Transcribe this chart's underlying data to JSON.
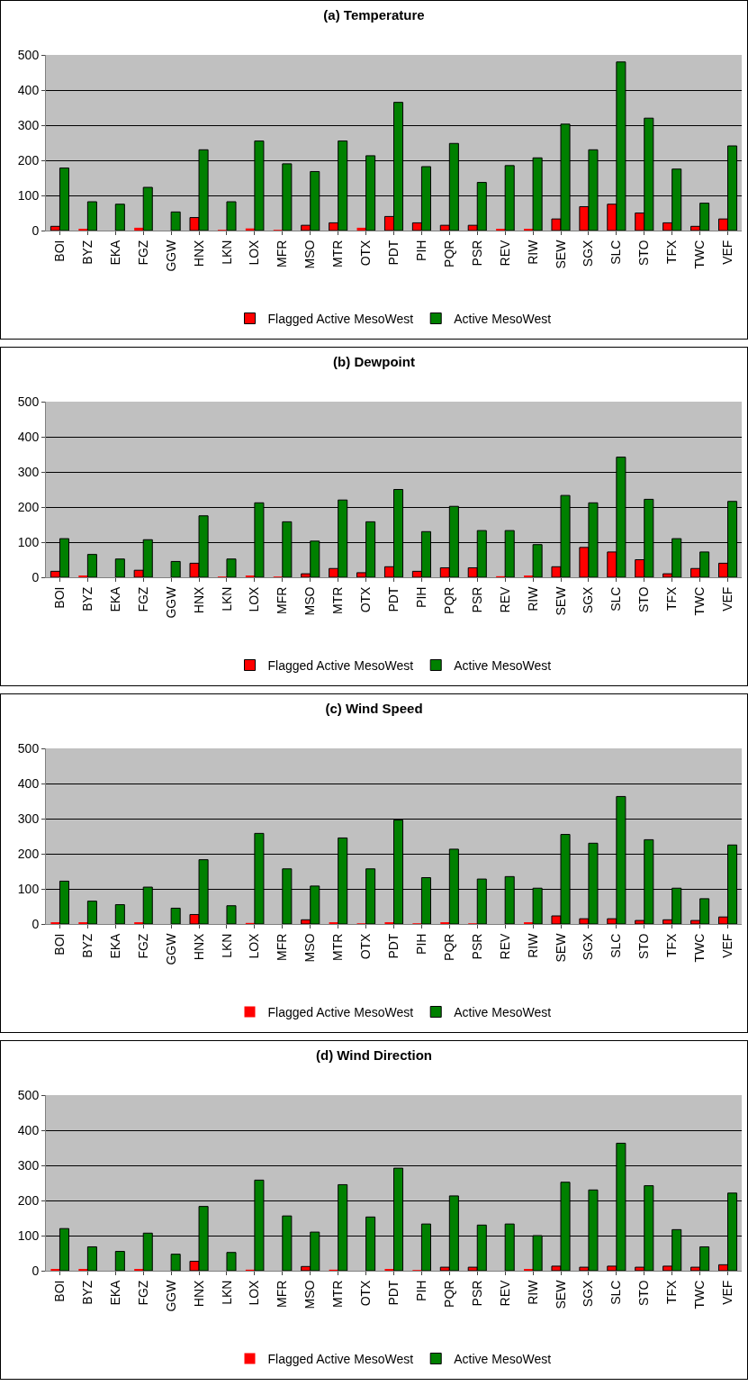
{
  "chart_data": [
    {
      "type": "bar",
      "title": "(a) Temperature",
      "categories": [
        "BOI",
        "BYZ",
        "EKA",
        "FGZ",
        "GGW",
        "HNX",
        "LKN",
        "LOX",
        "MFR",
        "MSO",
        "MTR",
        "OTX",
        "PDT",
        "PIH",
        "PQR",
        "PSR",
        "REV",
        "RIW",
        "SEW",
        "SGX",
        "SLC",
        "STO",
        "TFX",
        "TWC",
        "VEF"
      ],
      "ylim": [
        0,
        500
      ],
      "yticks": [
        0,
        100,
        200,
        300,
        400,
        500
      ],
      "grid": "y",
      "legend": "bottom",
      "series": [
        {
          "name": "Flagged Active MesoWest",
          "color": "#ff0000",
          "values": [
            12,
            5,
            0,
            8,
            0,
            37,
            2,
            6,
            2,
            15,
            22,
            8,
            40,
            22,
            15,
            15,
            5,
            5,
            33,
            68,
            75,
            50,
            22,
            12,
            33
          ]
        },
        {
          "name": "Active MesoWest",
          "color": "#008000",
          "values": [
            178,
            82,
            75,
            123,
            53,
            230,
            82,
            255,
            190,
            168,
            255,
            213,
            365,
            182,
            248,
            137,
            185,
            207,
            303,
            230,
            480,
            320,
            175,
            78,
            241
          ]
        }
      ]
    },
    {
      "type": "bar",
      "title": "(b) Dewpoint",
      "categories": [
        "BOI",
        "BYZ",
        "EKA",
        "FGZ",
        "GGW",
        "HNX",
        "LKN",
        "LOX",
        "MFR",
        "MSO",
        "MTR",
        "OTX",
        "PDT",
        "PIH",
        "PQR",
        "PSR",
        "REV",
        "RIW",
        "SEW",
        "SGX",
        "SLC",
        "STO",
        "TFX",
        "TWC",
        "VEF"
      ],
      "ylim": [
        0,
        500
      ],
      "yticks": [
        0,
        100,
        200,
        300,
        400,
        500
      ],
      "grid": "y",
      "legend": "bottom",
      "series": [
        {
          "name": "Flagged Active MesoWest",
          "color": "#ff0000",
          "values": [
            17,
            5,
            0,
            20,
            0,
            40,
            2,
            5,
            2,
            10,
            25,
            13,
            30,
            17,
            27,
            27,
            3,
            5,
            30,
            85,
            72,
            50,
            10,
            25,
            40
          ]
        },
        {
          "name": "Active MesoWest",
          "color": "#008000",
          "values": [
            110,
            65,
            52,
            107,
            45,
            175,
            52,
            212,
            158,
            103,
            220,
            158,
            250,
            130,
            202,
            133,
            133,
            93,
            233,
            212,
            342,
            222,
            110,
            72,
            216
          ]
        }
      ]
    },
    {
      "type": "bar",
      "title": "(c) Wind Speed",
      "categories": [
        "BOI",
        "BYZ",
        "EKA",
        "FGZ",
        "GGW",
        "HNX",
        "LKN",
        "LOX",
        "MFR",
        "MSO",
        "MTR",
        "OTX",
        "PDT",
        "PIH",
        "PQR",
        "PSR",
        "REV",
        "RIW",
        "SEW",
        "SGX",
        "SLC",
        "STO",
        "TFX",
        "TWC",
        "VEF"
      ],
      "ylim": [
        0,
        500
      ],
      "yticks": [
        0,
        100,
        200,
        300,
        400,
        500
      ],
      "grid": "y",
      "legend": "bottom",
      "series": [
        {
          "name": "Flagged Active MesoWest",
          "color": "#ff0000",
          "values": [
            5,
            5,
            0,
            5,
            0,
            27,
            0,
            3,
            0,
            12,
            5,
            2,
            5,
            2,
            5,
            2,
            0,
            5,
            23,
            15,
            15,
            10,
            12,
            10,
            20
          ]
        },
        {
          "name": "Active MesoWest",
          "color": "#008000",
          "values": [
            122,
            65,
            55,
            105,
            45,
            183,
            52,
            258,
            157,
            108,
            245,
            157,
            296,
            132,
            213,
            128,
            135,
            102,
            255,
            230,
            363,
            240,
            102,
            72,
            225
          ]
        }
      ]
    },
    {
      "type": "bar",
      "title": "(d) Wind Direction",
      "categories": [
        "BOI",
        "BYZ",
        "EKA",
        "FGZ",
        "GGW",
        "HNX",
        "LKN",
        "LOX",
        "MFR",
        "MSO",
        "MTR",
        "OTX",
        "PDT",
        "PIH",
        "PQR",
        "PSR",
        "REV",
        "RIW",
        "SEW",
        "SGX",
        "SLC",
        "STO",
        "TFX",
        "TWC",
        "VEF"
      ],
      "ylim": [
        0,
        500
      ],
      "yticks": [
        0,
        100,
        200,
        300,
        400,
        500
      ],
      "grid": "y",
      "legend": "bottom",
      "series": [
        {
          "name": "Flagged Active MesoWest",
          "color": "#ff0000",
          "values": [
            5,
            5,
            0,
            5,
            0,
            27,
            0,
            3,
            0,
            12,
            3,
            0,
            5,
            2,
            10,
            10,
            0,
            5,
            13,
            10,
            13,
            10,
            13,
            10,
            17
          ]
        },
        {
          "name": "Active MesoWest",
          "color": "#008000",
          "values": [
            120,
            68,
            55,
            107,
            47,
            183,
            52,
            258,
            156,
            110,
            245,
            153,
            292,
            133,
            213,
            130,
            133,
            100,
            252,
            230,
            363,
            242,
            117,
            68,
            221
          ]
        }
      ]
    }
  ]
}
